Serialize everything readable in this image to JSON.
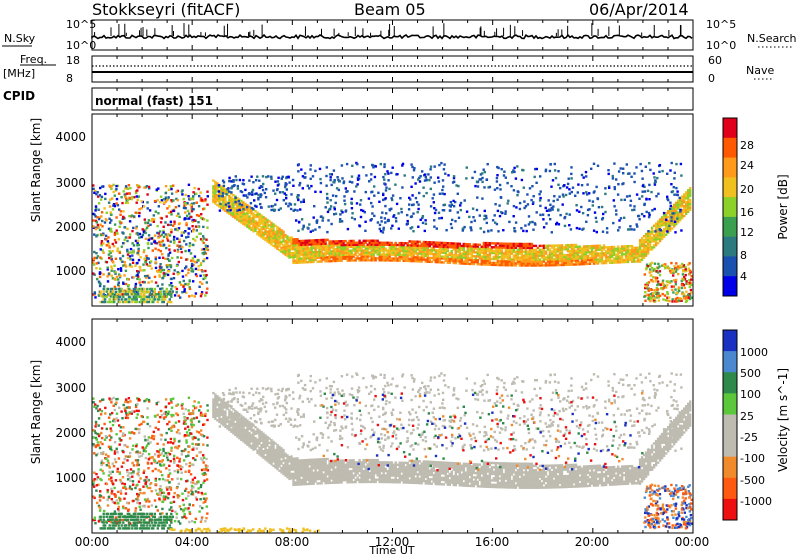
{
  "header": {
    "station": "Stokkseyri (fitACF)",
    "beam": "Beam 05",
    "date": "06/Apr/2014"
  },
  "noise_panel": {
    "left_label": "N.Sky",
    "right_label": "N.Search",
    "tick_top": "10^5",
    "tick_bottom": "10^0"
  },
  "freq_panel": {
    "left_label_1": "Freq.",
    "left_label_2": "[MHz]",
    "left_tick_top": "18",
    "left_tick_bottom": "8",
    "right_label": "Nave",
    "right_tick_top": "60",
    "right_tick_bottom": "0"
  },
  "cpid_panel": {
    "label": "CPID",
    "value": "normal (fast) 151"
  },
  "x_axis": {
    "label": "Time UT",
    "ticks": [
      "00:00",
      "04:00",
      "08:00",
      "12:00",
      "16:00",
      "20:00",
      "00:00"
    ]
  },
  "chart_data": [
    {
      "type": "heatmap",
      "quantity": "Power",
      "colorbar_label": "Power [dB]",
      "colorbar_ticks": [
        "28",
        "24",
        "20",
        "16",
        "12",
        "8",
        "4"
      ],
      "colorbar_colors": [
        "#e0001a",
        "#ff5a00",
        "#ff9a1a",
        "#f0c020",
        "#8cd02a",
        "#3aa050",
        "#2a7a80",
        "#1a50b0",
        "#0000e8"
      ],
      "ylabel": "Slant Range [km]",
      "y_ticks": [
        "4000",
        "3000",
        "2000",
        "1000"
      ],
      "xlabel": "Time UT",
      "xlim": [
        "00:00",
        "24:00"
      ],
      "ylim": [
        180,
        4600
      ]
    },
    {
      "type": "heatmap",
      "quantity": "Velocity",
      "colorbar_label": "Velocity [m s^-1]",
      "colorbar_ticks": [
        "1000",
        "500",
        "100",
        "25",
        "-25",
        "-100",
        "-500",
        "-1000"
      ],
      "colorbar_colors": [
        "#1a30c0",
        "#4a88d0",
        "#2e8a4a",
        "#5ac83a",
        "#bebbb0",
        "#bebbb0",
        "#f08a2a",
        "#ff5a10",
        "#ee1010"
      ],
      "ylabel": "Slant Range [km]",
      "y_ticks": [
        "4000",
        "3000",
        "2000",
        "1000"
      ],
      "xlabel": "Time UT",
      "xlim": [
        "00:00",
        "24:00"
      ],
      "ylim": [
        180,
        4600
      ]
    }
  ]
}
